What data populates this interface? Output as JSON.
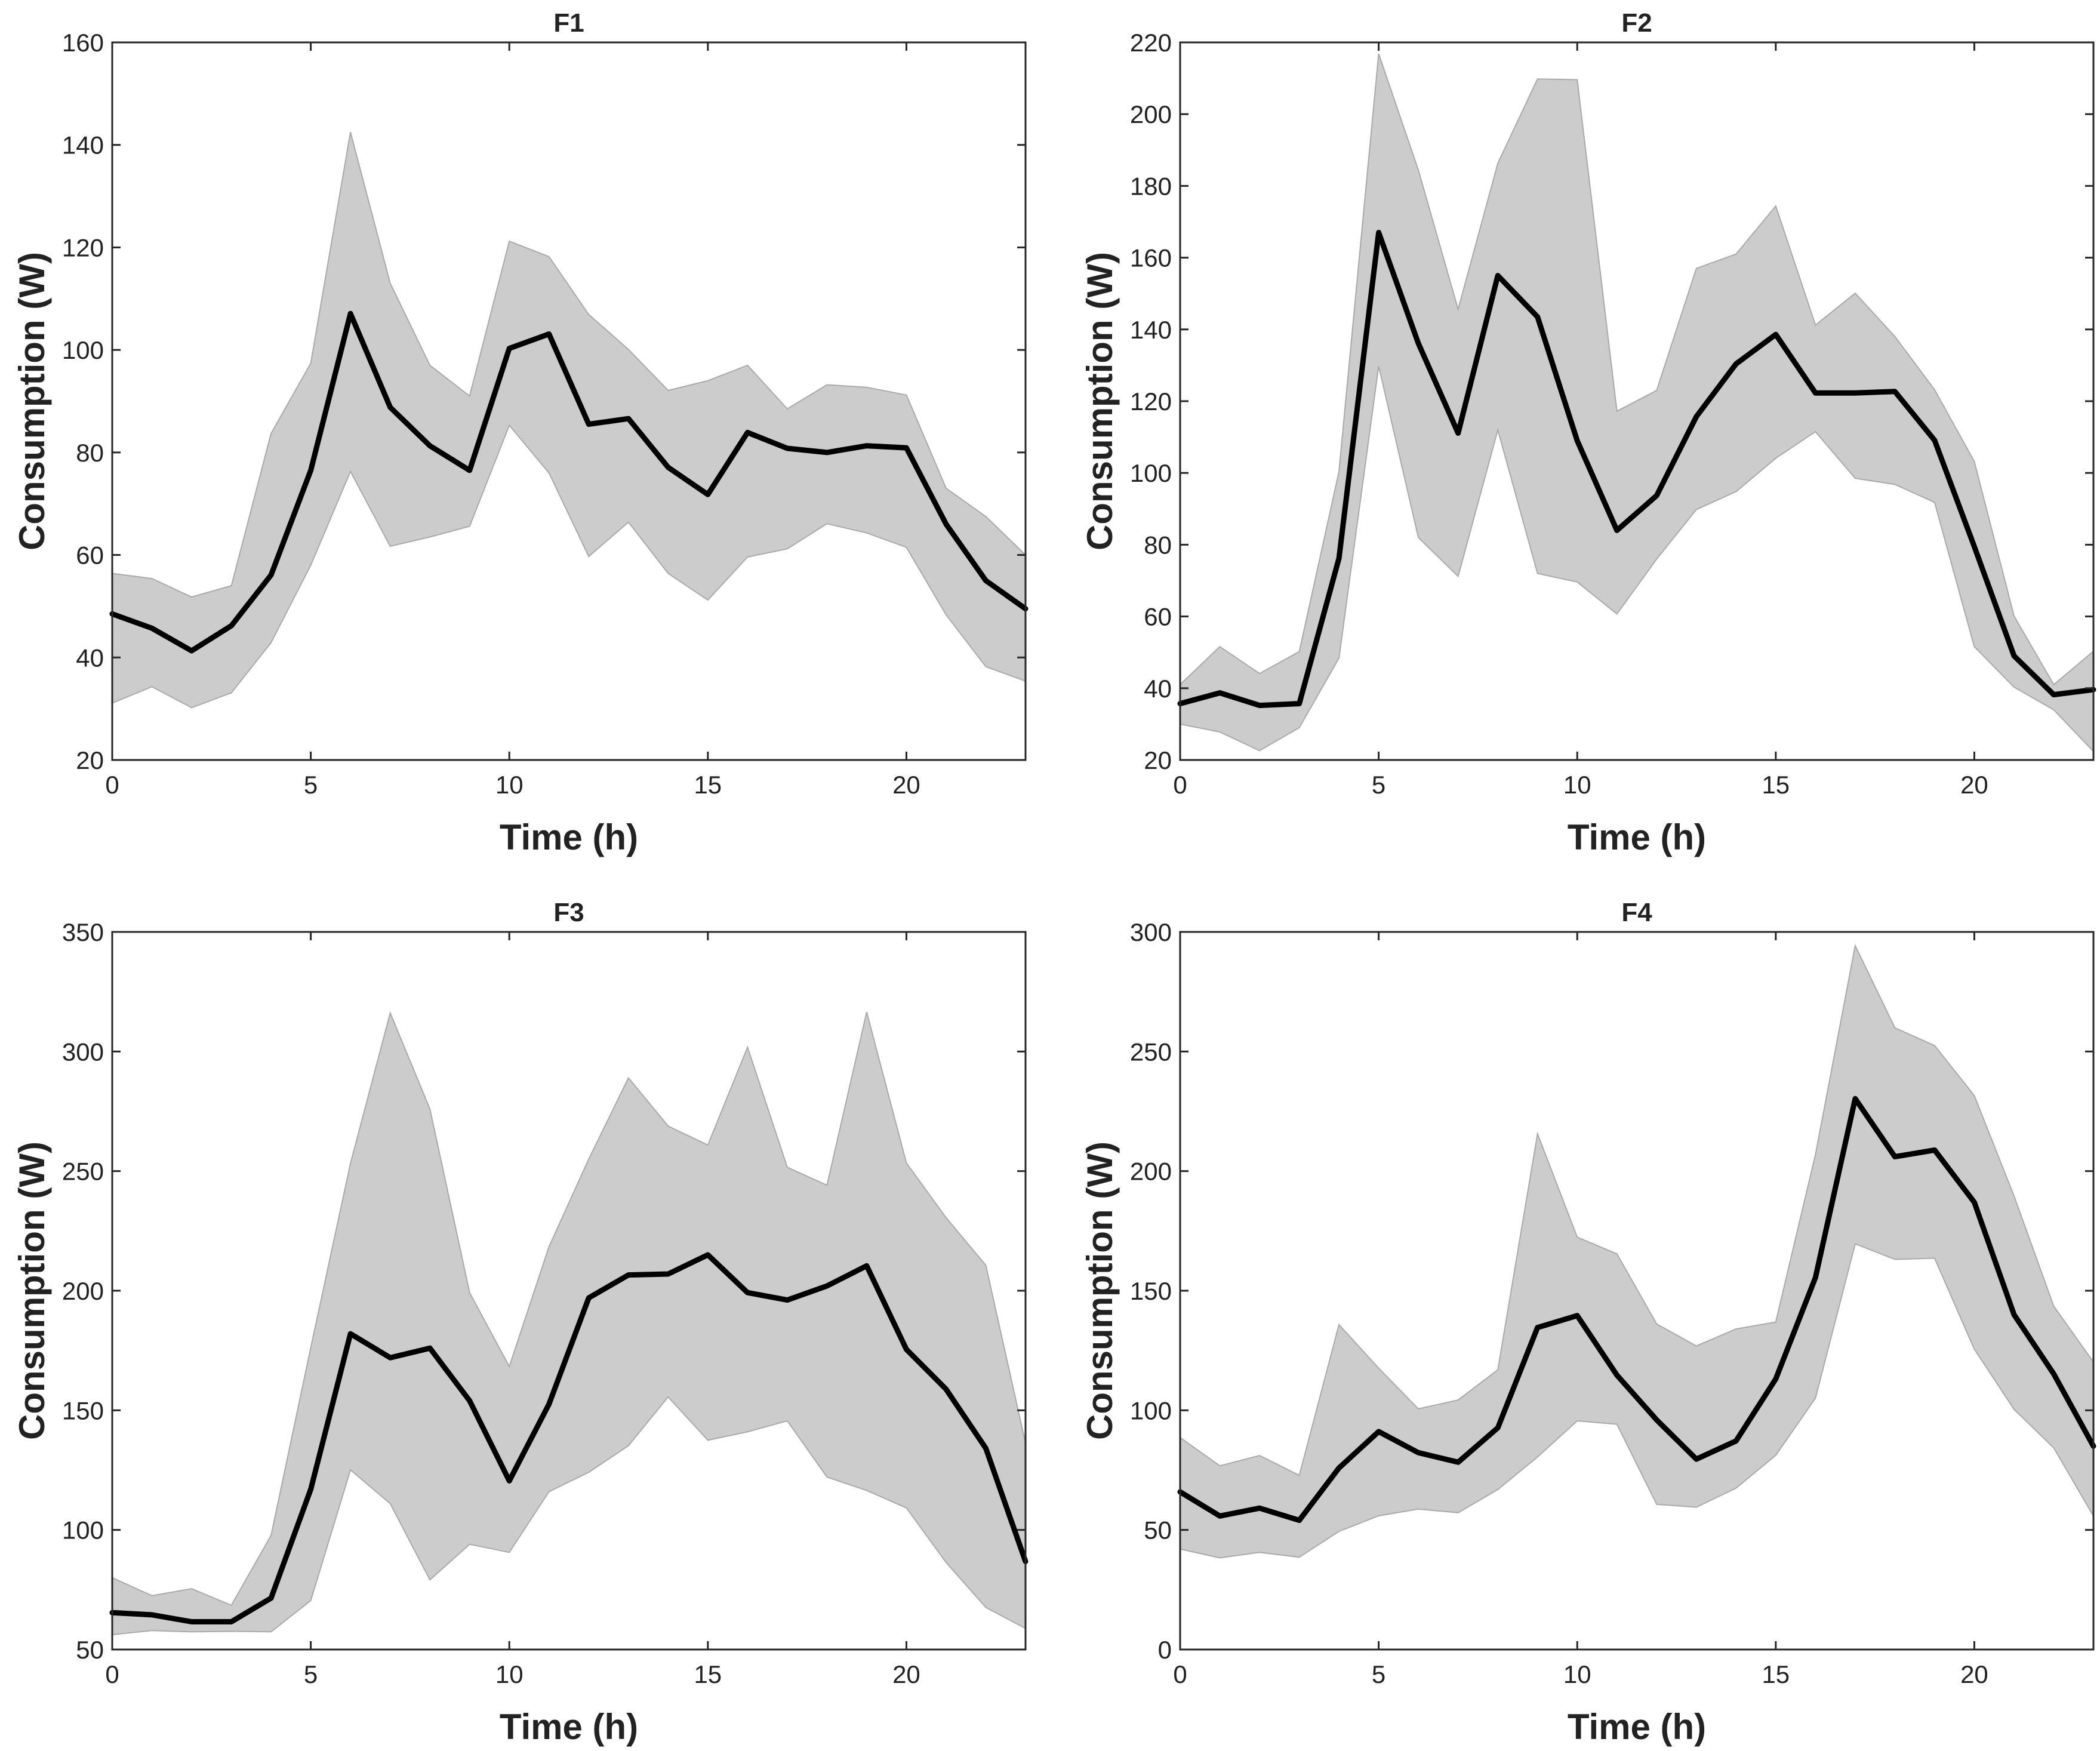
{
  "chart_data": [
    {
      "type": "area",
      "title": "F1",
      "xlabel": "Time (h)",
      "ylabel": "Consumption (W)",
      "xlim": [
        0,
        23
      ],
      "ylim": [
        20,
        160
      ],
      "xticks": [
        0,
        5,
        10,
        15,
        20
      ],
      "yticks": [
        20,
        40,
        60,
        80,
        100,
        120,
        140,
        160
      ],
      "x": [
        0,
        1,
        2,
        3,
        4,
        5,
        6,
        7,
        8,
        9,
        10,
        11,
        12,
        13,
        14,
        15,
        16,
        17,
        18,
        19,
        20,
        21,
        22,
        23
      ],
      "mean": [
        48.5,
        45.7,
        41.3,
        46.2,
        56.1,
        76.5,
        107.1,
        88.8,
        81.3,
        76.5,
        100.3,
        103.1,
        85.5,
        86.6,
        77.1,
        71.8,
        83.9,
        80.8,
        80,
        81.3,
        80.9,
        66,
        55,
        49.5
      ],
      "upper": [
        56.4,
        55.4,
        51.8,
        54,
        83.7,
        97.4,
        142.5,
        113,
        97,
        91,
        121.2,
        118.2,
        106.9,
        100.1,
        92.1,
        94,
        97,
        88.5,
        93.2,
        92.7,
        91.2,
        73,
        67.5,
        60
      ],
      "lower": [
        31.1,
        34.3,
        30.2,
        33.1,
        42.9,
        58,
        76.3,
        61.7,
        63.5,
        65.6,
        85.3,
        76,
        59.7,
        66.4,
        56.4,
        51.2,
        59.6,
        61.2,
        66.1,
        64.3,
        61.5,
        48.3,
        38.2,
        35.4
      ],
      "grid": false,
      "colors": {
        "mean": "#000000",
        "band": "#cccccc"
      }
    },
    {
      "type": "area",
      "title": "F2",
      "xlabel": "Time (h)",
      "ylabel": "Consumption (W)",
      "xlim": [
        0,
        23
      ],
      "ylim": [
        20,
        220
      ],
      "xticks": [
        0,
        5,
        10,
        15,
        20
      ],
      "yticks": [
        20,
        40,
        60,
        80,
        100,
        120,
        140,
        160,
        180,
        200,
        220
      ],
      "x": [
        0,
        1,
        2,
        3,
        4,
        5,
        6,
        7,
        8,
        9,
        10,
        11,
        12,
        13,
        14,
        15,
        16,
        17,
        18,
        19,
        20,
        21,
        22,
        23
      ],
      "mean": [
        35.7,
        38.7,
        35.2,
        35.7,
        76.2,
        167,
        136.1,
        111.1,
        155,
        143.5,
        109,
        84,
        93.7,
        115.7,
        130.4,
        138.6,
        122.3,
        122.3,
        122.7,
        109.1,
        79.5,
        49,
        38.2,
        39.6
      ],
      "upper": [
        41,
        51.6,
        44.1,
        50.2,
        100.4,
        216.8,
        184.4,
        145.6,
        186.3,
        209.8,
        209.6,
        117.2,
        123,
        157,
        161,
        174.4,
        141.2,
        150.1,
        138,
        123.2,
        103.2,
        60.1,
        41,
        50.3
      ],
      "lower": [
        30,
        27.8,
        22.6,
        29,
        48.4,
        129.8,
        82,
        71.2,
        112,
        72,
        69.6,
        60.7,
        76,
        89.8,
        94.8,
        104.1,
        111.5,
        98.5,
        96.8,
        91.8,
        51.6,
        40.3,
        34,
        22.4
      ],
      "grid": false,
      "colors": {
        "mean": "#000000",
        "band": "#cccccc"
      }
    },
    {
      "type": "area",
      "title": "F3",
      "xlabel": "Time (h)",
      "ylabel": "Consumption (W)",
      "xlim": [
        0,
        23
      ],
      "ylim": [
        50,
        350
      ],
      "xticks": [
        0,
        5,
        10,
        15,
        20
      ],
      "yticks": [
        50,
        100,
        150,
        200,
        250,
        300,
        350
      ],
      "x": [
        0,
        1,
        2,
        3,
        4,
        5,
        6,
        7,
        8,
        9,
        10,
        11,
        12,
        13,
        14,
        15,
        16,
        17,
        18,
        19,
        20,
        21,
        22,
        23
      ],
      "mean": [
        65.4,
        64.5,
        61.6,
        61.6,
        71.5,
        117,
        182,
        172,
        176,
        154,
        120.5,
        152.6,
        197,
        206.6,
        207,
        215,
        199.2,
        196.1,
        202,
        210.4,
        175.5,
        158.8,
        134.1,
        86.8
      ],
      "upper": [
        80,
        72.5,
        75.4,
        68.5,
        97.7,
        176.2,
        253.2,
        316.1,
        276,
        199.2,
        168.3,
        218.4,
        255,
        289,
        268.8,
        260.9,
        301.8,
        251.6,
        244.1,
        316.5,
        253.4,
        230.5,
        210.6,
        136.2
      ],
      "lower": [
        56.2,
        57.9,
        57.4,
        57.6,
        57.4,
        70.5,
        125.1,
        111,
        79.1,
        94,
        90.6,
        116,
        124.1,
        135.2,
        155.6,
        137.5,
        141,
        145.6,
        122.1,
        116.5,
        109.2,
        86.4,
        67.6,
        58.8
      ],
      "grid": false,
      "colors": {
        "mean": "#000000",
        "band": "#cccccc"
      }
    },
    {
      "type": "area",
      "title": "F4",
      "xlabel": "Time (h)",
      "ylabel": "Consumption (W)",
      "xlim": [
        0,
        23
      ],
      "ylim": [
        0,
        300
      ],
      "xticks": [
        0,
        5,
        10,
        15,
        20
      ],
      "yticks": [
        0,
        50,
        100,
        150,
        200,
        250,
        300
      ],
      "x": [
        0,
        1,
        2,
        3,
        4,
        5,
        6,
        7,
        8,
        9,
        10,
        11,
        12,
        13,
        14,
        15,
        16,
        17,
        18,
        19,
        20,
        21,
        22,
        23
      ],
      "mean": [
        65.9,
        55.8,
        59.1,
        54,
        75.9,
        91.1,
        82.3,
        78.3,
        92.7,
        134.6,
        139.6,
        114.7,
        96,
        79.6,
        87.2,
        113.1,
        155.5,
        230.3,
        206,
        208.8,
        187,
        140,
        115.2,
        85
      ],
      "upper": [
        88.6,
        76.8,
        81.1,
        72.8,
        135.8,
        117.6,
        100.6,
        104.3,
        116.9,
        215.6,
        172.4,
        165.4,
        136.1,
        126.9,
        134,
        136.9,
        206.9,
        294.2,
        259.9,
        252.5,
        231.6,
        189.6,
        143.5,
        120.2
      ],
      "lower": [
        42,
        38.3,
        40.6,
        38.6,
        49.4,
        55.9,
        58.7,
        57.2,
        66.9,
        80.5,
        95.6,
        94.2,
        60.7,
        59.5,
        67.5,
        81.2,
        105.1,
        169.6,
        163.1,
        163.6,
        125.6,
        100.4,
        84.3,
        55.8
      ],
      "grid": false,
      "colors": {
        "mean": "#000000",
        "band": "#cccccc"
      }
    }
  ]
}
